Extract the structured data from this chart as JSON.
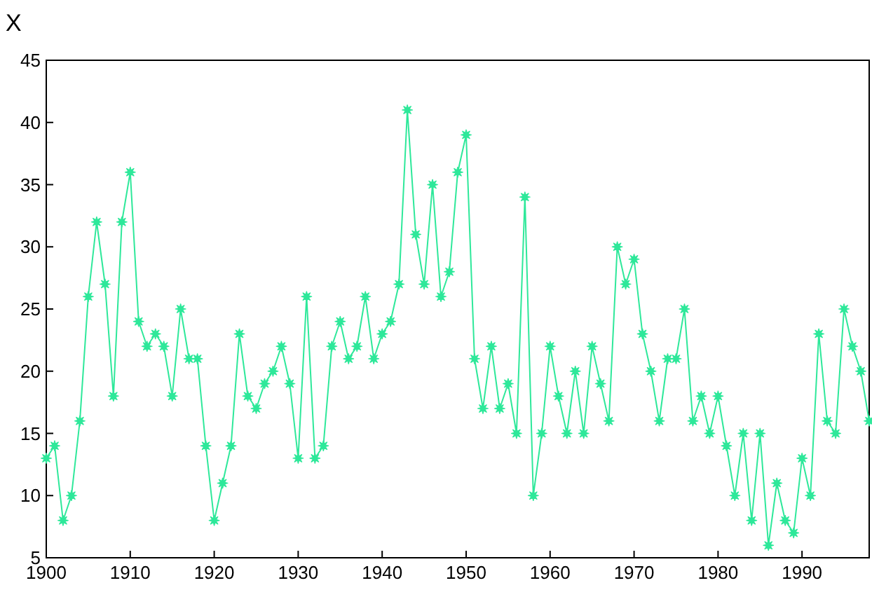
{
  "chart_data": {
    "type": "line",
    "ylabel": "X",
    "x": [
      1900,
      1901,
      1902,
      1903,
      1904,
      1905,
      1906,
      1907,
      1908,
      1909,
      1910,
      1911,
      1912,
      1913,
      1914,
      1915,
      1916,
      1917,
      1918,
      1919,
      1920,
      1921,
      1922,
      1923,
      1924,
      1925,
      1926,
      1927,
      1928,
      1929,
      1930,
      1931,
      1932,
      1933,
      1934,
      1935,
      1936,
      1937,
      1938,
      1939,
      1940,
      1941,
      1942,
      1943,
      1944,
      1945,
      1946,
      1947,
      1948,
      1949,
      1950,
      1951,
      1952,
      1953,
      1954,
      1955,
      1956,
      1957,
      1958,
      1959,
      1960,
      1961,
      1962,
      1963,
      1964,
      1965,
      1966,
      1967,
      1968,
      1969,
      1970,
      1971,
      1972,
      1973,
      1974,
      1975,
      1976,
      1977,
      1978,
      1979,
      1980,
      1981,
      1982,
      1983,
      1984,
      1985,
      1986,
      1987,
      1988,
      1989,
      1990,
      1991,
      1992,
      1993,
      1994,
      1995,
      1996,
      1997,
      1998
    ],
    "series": [
      {
        "color": "#2ee89a",
        "values": [
          13,
          14,
          8,
          10,
          16,
          26,
          32,
          27,
          18,
          32,
          36,
          24,
          22,
          23,
          22,
          18,
          25,
          21,
          21,
          14,
          8,
          11,
          14,
          23,
          18,
          17,
          19,
          20,
          22,
          19,
          13,
          26,
          13,
          14,
          22,
          24,
          21,
          22,
          26,
          21,
          23,
          24,
          27,
          41,
          31,
          27,
          35,
          26,
          28,
          36,
          39,
          21,
          17,
          22,
          17,
          19,
          15,
          34,
          10,
          15,
          22,
          18,
          15,
          20,
          15,
          22,
          19,
          16,
          30,
          27,
          29,
          23,
          20,
          16,
          21,
          21,
          25,
          16,
          18,
          15,
          18,
          14,
          10,
          15,
          8,
          15,
          6,
          11,
          8,
          7,
          13,
          10,
          23,
          16,
          15,
          25,
          22,
          20,
          16
        ]
      }
    ],
    "xlim": [
      1900,
      1998
    ],
    "xticks": [
      1900,
      1910,
      1920,
      1930,
      1940,
      1950,
      1960,
      1970,
      1980,
      1990
    ],
    "ylim": [
      5,
      45
    ],
    "yticks": [
      5,
      10,
      15,
      20,
      25,
      30,
      35,
      40,
      45
    ],
    "marker": "star",
    "line_style": "solid",
    "grid": false
  }
}
